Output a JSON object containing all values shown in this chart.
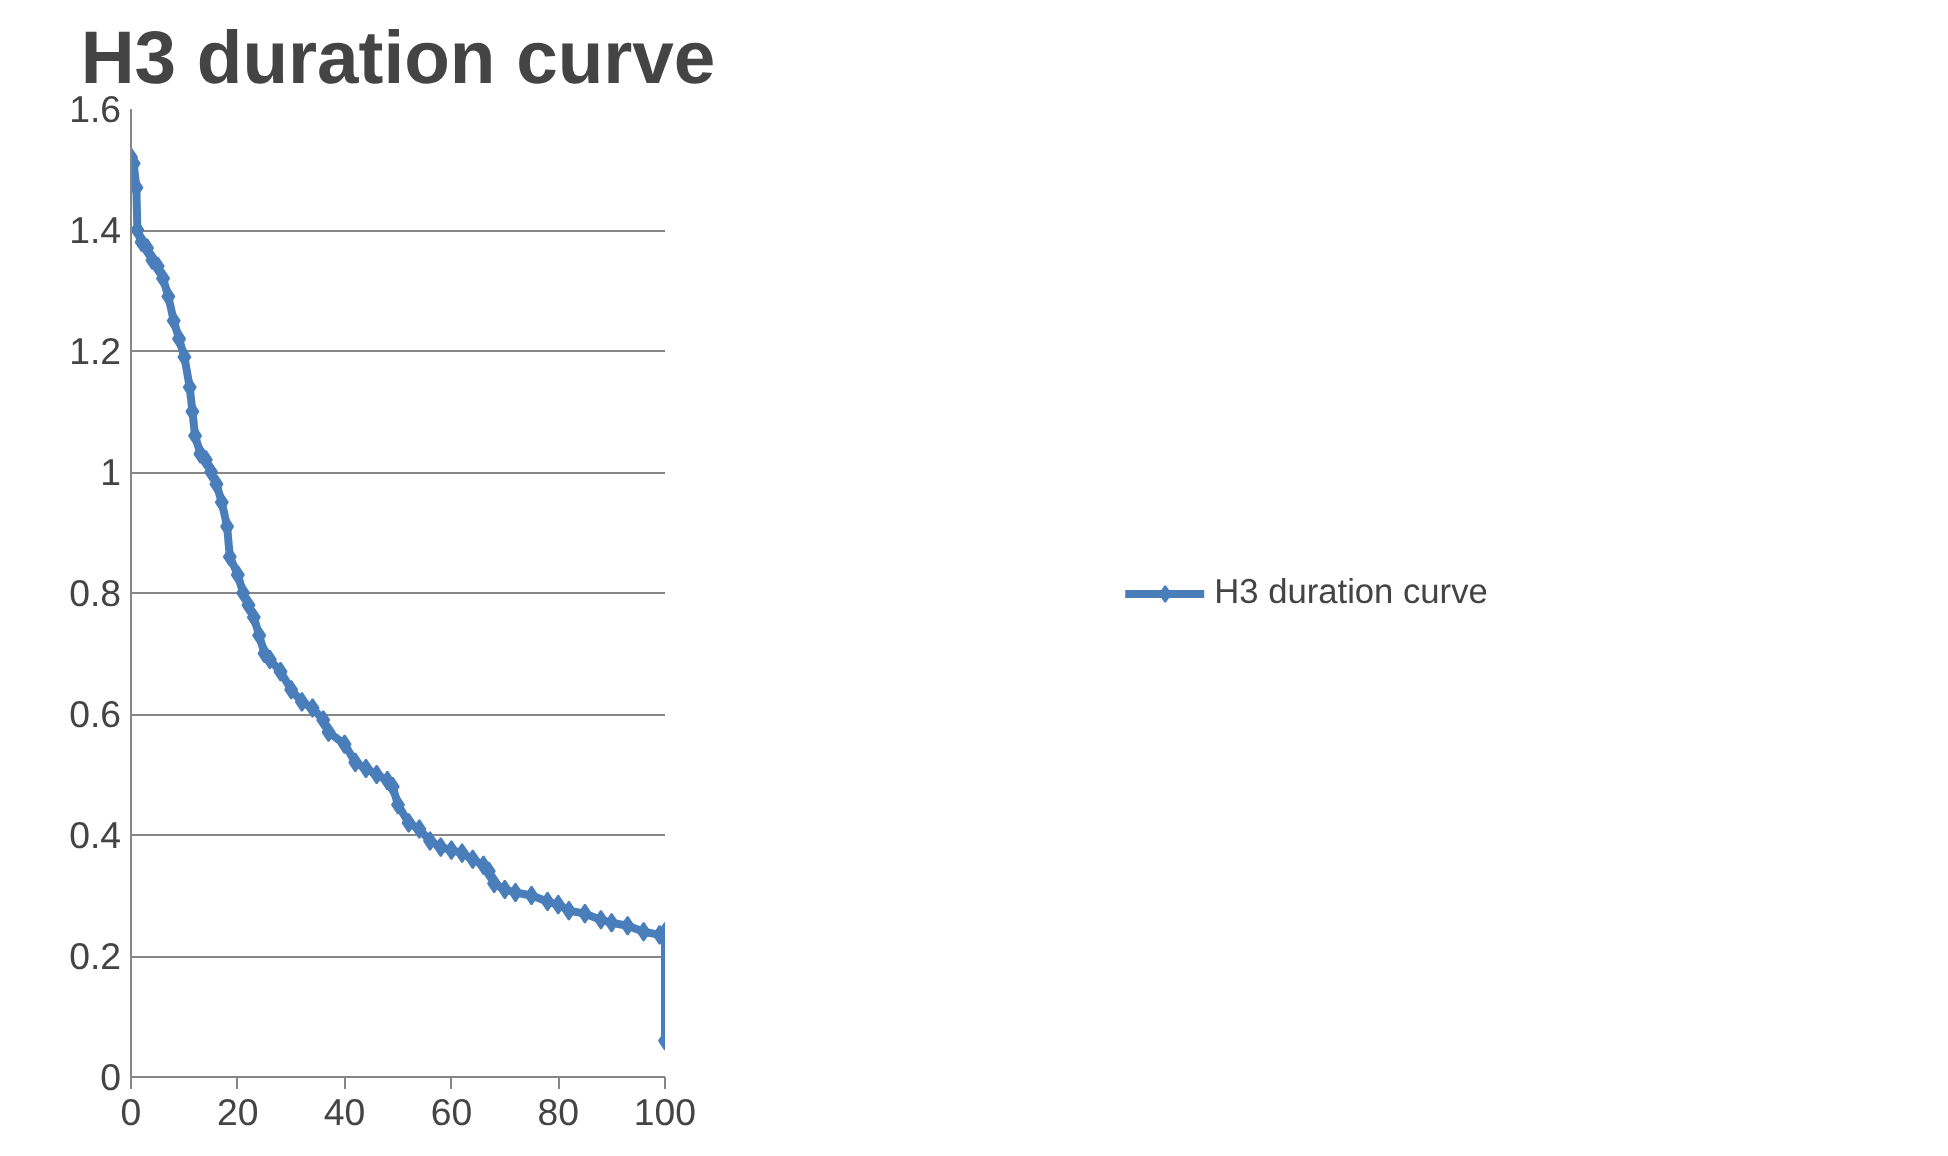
{
  "chart_data": {
    "type": "line",
    "title": "H3 duration curve",
    "x": [
      0,
      0.5,
      1,
      1.2,
      2,
      3,
      4,
      5,
      6,
      7,
      8,
      9,
      10,
      11,
      11.5,
      12,
      13,
      14,
      15,
      16,
      17,
      18,
      18.5,
      20,
      21,
      22,
      23,
      24,
      25,
      26,
      28,
      30,
      32,
      34,
      36,
      37,
      40,
      42,
      44,
      46,
      48,
      49,
      50,
      52,
      54,
      56,
      58,
      60,
      62,
      64,
      66,
      67,
      68,
      70,
      72,
      75,
      78,
      80,
      82,
      85,
      88,
      90,
      93,
      96,
      99,
      100,
      100
    ],
    "series": [
      {
        "name": "H3 duration curve",
        "color": "#4a7ebb",
        "values": [
          1.52,
          1.51,
          1.47,
          1.4,
          1.38,
          1.37,
          1.35,
          1.34,
          1.32,
          1.29,
          1.25,
          1.22,
          1.19,
          1.14,
          1.1,
          1.06,
          1.03,
          1.02,
          1.0,
          0.98,
          0.95,
          0.91,
          0.86,
          0.83,
          0.8,
          0.78,
          0.76,
          0.73,
          0.7,
          0.69,
          0.67,
          0.64,
          0.62,
          0.61,
          0.59,
          0.57,
          0.55,
          0.52,
          0.51,
          0.5,
          0.49,
          0.48,
          0.45,
          0.42,
          0.41,
          0.39,
          0.38,
          0.375,
          0.37,
          0.36,
          0.35,
          0.34,
          0.32,
          0.31,
          0.305,
          0.3,
          0.29,
          0.285,
          0.275,
          0.27,
          0.26,
          0.255,
          0.25,
          0.24,
          0.235,
          0.24,
          0.06
        ]
      }
    ],
    "xlim": [
      0,
      100
    ],
    "xticks": [
      0,
      20,
      40,
      60,
      80,
      100
    ],
    "ylim": [
      0,
      1.6
    ],
    "yticks": [
      0,
      0.2,
      0.4,
      0.6,
      0.8,
      1,
      1.2,
      1.4,
      1.6
    ],
    "grid": "y",
    "legend": "right",
    "marker": "diamond",
    "line_style": "solid"
  }
}
